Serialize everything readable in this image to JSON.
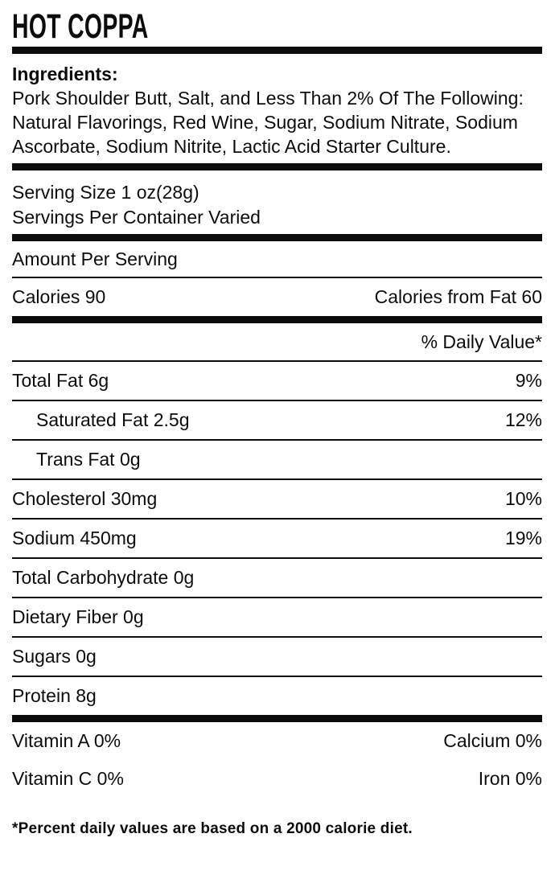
{
  "title": "HOT COPPA",
  "ingredients": {
    "label": "Ingredients:",
    "text": "Pork Shoulder Butt, Salt, and Less Than 2% Of The Following: Natural Flavorings, Red Wine, Sugar, Sodium Nitrate, Sodium Ascorbate, Sodium Nitrite, Lactic Acid Starter Culture."
  },
  "serving": {
    "serving_size": "Serving Size 1 oz(28g)",
    "servings_per_container": "Servings Per Container Varied"
  },
  "amount_per_serving": "Amount Per Serving",
  "calories": {
    "left": "Calories 90",
    "right": "Calories from Fat 60"
  },
  "daily_value_header": "% Daily Value*",
  "nutrients": [
    {
      "label": "Total Fat 6g",
      "dv": "9%"
    },
    {
      "label": "Saturated Fat 2.5g",
      "dv": "12%"
    },
    {
      "label": "Trans Fat 0g",
      "dv": ""
    },
    {
      "label": "Cholesterol 30mg",
      "dv": "10%"
    },
    {
      "label": "Sodium 450mg",
      "dv": "19%"
    },
    {
      "label": "Total Carbohydrate 0g",
      "dv": ""
    },
    {
      "label": "Dietary Fiber 0g",
      "dv": ""
    },
    {
      "label": "Sugars 0g",
      "dv": ""
    },
    {
      "label": "Protein 8g",
      "dv": ""
    }
  ],
  "vitamins": [
    {
      "left": "Vitamin A 0%",
      "right": "Calcium 0%"
    },
    {
      "left": "Vitamin C 0%",
      "right": "Iron 0%"
    }
  ],
  "footnote": "*Percent daily values are based on a 2000 calorie diet.",
  "colors": {
    "text": "#0c0c0c",
    "background": "#ffffff",
    "rule": "#0c0c0c"
  }
}
